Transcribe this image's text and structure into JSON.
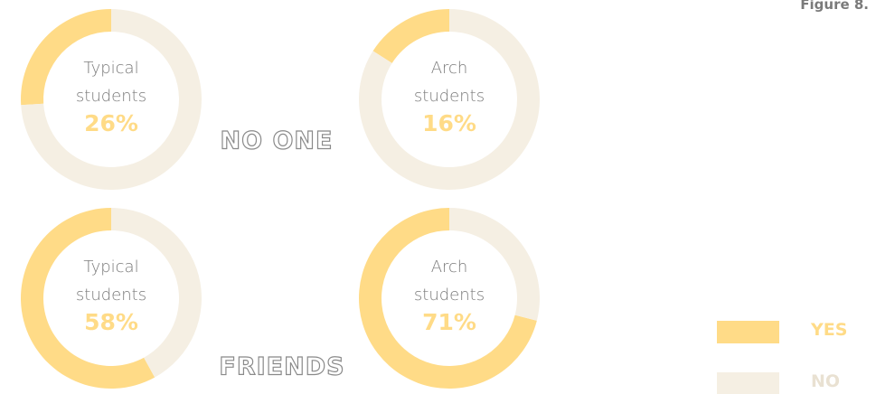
{
  "figure_label": "Figure 8.",
  "groups": [
    "NO ONE",
    "FRIENDS"
  ],
  "legend": [
    {
      "name": "YES",
      "color": "#ffdb87"
    },
    {
      "name": "NO",
      "color": "#f5efe3"
    }
  ],
  "chart_data": [
    {
      "type": "donut",
      "title": "Typical students",
      "values": [
        26,
        74
      ],
      "value_labels": [
        "26%",
        null
      ]
    },
    {
      "type": "donut",
      "title": "Arch students",
      "values": [
        16,
        84
      ],
      "value_labels": [
        "16%",
        null
      ]
    },
    {
      "type": "donut",
      "title": "Typical students",
      "values": [
        58,
        42
      ],
      "value_labels": [
        "58%",
        null
      ]
    },
    {
      "type": "donut",
      "title": "Arch students",
      "values": [
        71,
        29
      ],
      "value_labels": [
        "71%",
        null
      ]
    }
  ]
}
